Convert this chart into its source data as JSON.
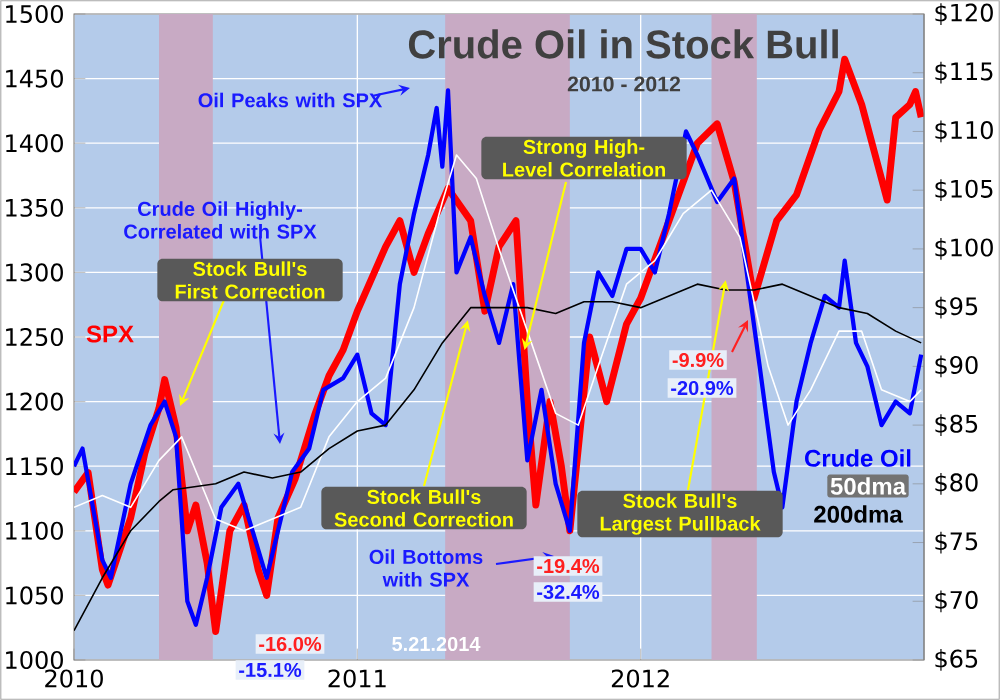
{
  "chart_data": {
    "type": "line",
    "title": "Crude Oil in Stock Bull",
    "subtitle": "2010 - 2012",
    "xlim": [
      2010,
      2013
    ],
    "xticks": [
      2010,
      2011,
      2012
    ],
    "ylim": [
      1000,
      1500
    ],
    "yticks": [
      1000,
      1050,
      1100,
      1150,
      1200,
      1250,
      1300,
      1350,
      1400,
      1450,
      1500
    ],
    "y2lim": [
      65,
      120
    ],
    "y2ticks": [
      {
        "value": 65,
        "label": "$65"
      },
      {
        "value": 70,
        "label": "$70"
      },
      {
        "value": 75,
        "label": "$75"
      },
      {
        "value": 80,
        "label": "$80"
      },
      {
        "value": 85,
        "label": "$85"
      },
      {
        "value": 90,
        "label": "$90"
      },
      {
        "value": 95,
        "label": "$95"
      },
      {
        "value": 100,
        "label": "$100"
      },
      {
        "value": 105,
        "label": "$105"
      },
      {
        "value": 110,
        "label": "$110"
      },
      {
        "value": 115,
        "label": "$115"
      },
      {
        "value": 120,
        "label": "$120"
      }
    ],
    "grid": true,
    "line_style": "solid",
    "bands": [
      {
        "axis": "x",
        "from": 2010.3,
        "to": 2010.49,
        "color": "#c8aac4"
      },
      {
        "axis": "x",
        "from": 2011.31,
        "to": 2011.75,
        "color": "#c8aac4"
      },
      {
        "axis": "x",
        "from": 2012.25,
        "to": 2012.41,
        "color": "#c8aac4"
      }
    ],
    "series": [
      {
        "name": "SPX",
        "color": "#ff0000",
        "x": [
          2010.0,
          2010.05,
          2010.1,
          2010.12,
          2010.2,
          2010.25,
          2010.3,
          2010.32,
          2010.36,
          2010.4,
          2010.43,
          2010.47,
          2010.5,
          2010.55,
          2010.6,
          2010.65,
          2010.68,
          2010.72,
          2010.78,
          2010.85,
          2010.9,
          2010.95,
          2011.0,
          2011.1,
          2011.15,
          2011.2,
          2011.25,
          2011.32,
          2011.4,
          2011.45,
          2011.5,
          2011.56,
          2011.6,
          2011.63,
          2011.68,
          2011.72,
          2011.75,
          2011.82,
          2011.88,
          2011.95,
          2012.0,
          2012.1,
          2012.2,
          2012.27,
          2012.33,
          2012.4,
          2012.48,
          2012.55,
          2012.63,
          2012.7,
          2012.72,
          2012.78,
          2012.87,
          2012.9,
          2012.95,
          2012.97,
          2012.99
        ],
        "values": [
          1130,
          1145,
          1070,
          1058,
          1110,
          1160,
          1195,
          1217,
          1180,
          1100,
          1120,
          1075,
          1022,
          1100,
          1120,
          1070,
          1050,
          1110,
          1140,
          1190,
          1220,
          1240,
          1270,
          1320,
          1340,
          1300,
          1330,
          1365,
          1340,
          1270,
          1320,
          1340,
          1200,
          1120,
          1200,
          1150,
          1100,
          1250,
          1200,
          1260,
          1280,
          1340,
          1400,
          1415,
          1370,
          1280,
          1340,
          1360,
          1410,
          1440,
          1465,
          1430,
          1356,
          1420,
          1430,
          1440,
          1420
        ]
      },
      {
        "name": "Crude Oil",
        "color": "#0000ff",
        "axis": "y2",
        "x": [
          2010.0,
          2010.03,
          2010.1,
          2010.13,
          2010.2,
          2010.27,
          2010.32,
          2010.36,
          2010.4,
          2010.43,
          2010.47,
          2010.52,
          2010.58,
          2010.63,
          2010.68,
          2010.72,
          2010.77,
          2010.83,
          2010.88,
          2010.95,
          2011.0,
          2011.05,
          2011.1,
          2011.15,
          2011.2,
          2011.25,
          2011.28,
          2011.3,
          2011.32,
          2011.35,
          2011.4,
          2011.45,
          2011.5,
          2011.55,
          2011.6,
          2011.65,
          2011.7,
          2011.75,
          2011.8,
          2011.85,
          2011.9,
          2011.95,
          2012.0,
          2012.05,
          2012.1,
          2012.16,
          2012.2,
          2012.27,
          2012.33,
          2012.38,
          2012.42,
          2012.47,
          2012.5,
          2012.55,
          2012.6,
          2012.65,
          2012.7,
          2012.72,
          2012.76,
          2012.8,
          2012.85,
          2012.9,
          2012.95,
          2012.99
        ],
        "values": [
          81.5,
          83,
          73.5,
          72,
          80,
          85,
          87,
          84,
          70,
          68,
          72,
          78,
          80,
          76,
          72,
          76,
          81,
          83,
          88,
          89,
          91,
          86,
          85,
          97,
          103,
          108,
          112,
          107,
          113.5,
          98,
          101,
          96,
          92,
          97,
          82,
          88,
          80,
          76,
          92,
          98,
          96,
          100,
          100,
          98,
          103,
          110,
          108,
          104,
          106,
          97,
          90,
          81,
          78,
          87,
          92,
          96,
          95,
          99,
          92,
          90,
          85,
          87,
          86,
          91
        ]
      },
      {
        "name": "50dma",
        "color": "#ffffff",
        "axis": "y2",
        "x": [
          2010.0,
          2010.1,
          2010.2,
          2010.3,
          2010.38,
          2010.5,
          2010.6,
          2010.7,
          2010.8,
          2010.9,
          2011.0,
          2011.1,
          2011.2,
          2011.3,
          2011.35,
          2011.42,
          2011.5,
          2011.6,
          2011.7,
          2011.78,
          2011.85,
          2011.95,
          2012.05,
          2012.15,
          2012.25,
          2012.35,
          2012.45,
          2012.52,
          2012.6,
          2012.7,
          2012.78,
          2012.85,
          2012.95,
          2012.99
        ],
        "values": [
          78,
          79,
          78,
          82,
          84,
          77,
          76,
          77,
          78,
          84,
          87,
          89,
          95,
          104,
          108,
          106,
          100,
          93,
          86,
          85,
          90,
          97,
          99,
          103,
          105,
          101,
          90,
          85,
          88,
          93,
          93,
          88,
          87,
          88
        ]
      },
      {
        "name": "200dma",
        "color": "#000000",
        "axis": "y2",
        "x": [
          2010.0,
          2010.1,
          2010.2,
          2010.3,
          2010.35,
          2010.5,
          2010.6,
          2010.7,
          2010.8,
          2010.9,
          2011.0,
          2011.1,
          2011.2,
          2011.3,
          2011.4,
          2011.5,
          2011.6,
          2011.7,
          2011.8,
          2011.9,
          2012.0,
          2012.1,
          2012.2,
          2012.3,
          2012.4,
          2012.5,
          2012.6,
          2012.7,
          2012.8,
          2012.9,
          2012.99
        ],
        "values": [
          67.5,
          72,
          76,
          78.5,
          79.5,
          80,
          81,
          80.5,
          81,
          83,
          84.5,
          85,
          88,
          92,
          95,
          95,
          95,
          94.5,
          95.5,
          95.5,
          95,
          96,
          97,
          96.5,
          96.5,
          97,
          96,
          95,
          94.5,
          93,
          92
        ]
      }
    ],
    "annotations": [
      "Oil Peaks with SPX",
      "Crude Oil Highly-Correlated with SPX",
      "Stock Bull's First Correction",
      {
        "text": "Strong High-Level Correlation",
        "x": 2011.59,
        "y": 1240
      },
      {
        "text": "Stock Bull's Second Correction",
        "x": 2011.39,
        "y": 1263
      },
      "Oil Bottoms with SPX",
      {
        "text": "Stock Bull's Largest Pullback",
        "x": 2012.3,
        "y": 1294
      },
      "-16.0%",
      "-15.1%",
      "-19.4%",
      "-32.4%",
      "-9.9%",
      "-20.9%",
      "5.21.2014"
    ]
  }
}
